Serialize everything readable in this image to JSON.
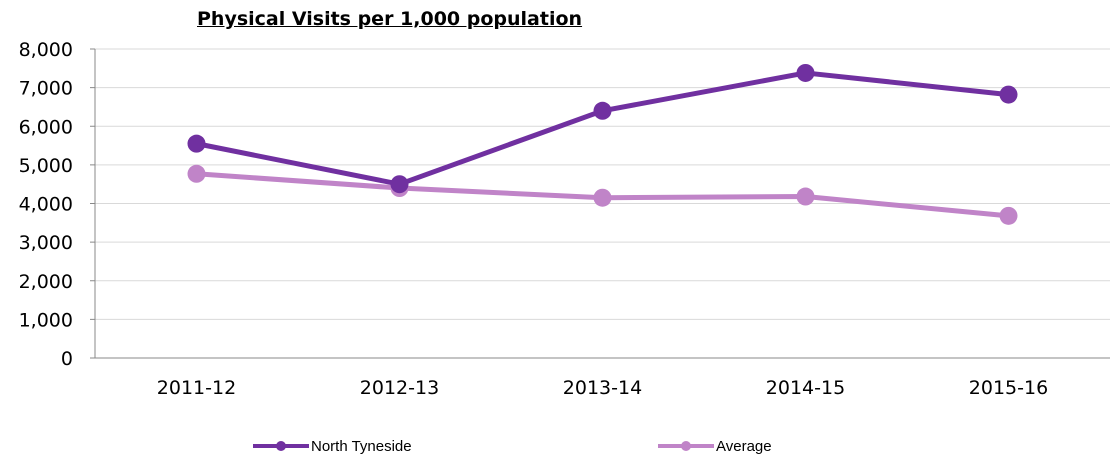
{
  "chart_data": {
    "type": "line",
    "title": "Physical Visits per 1,000 population",
    "xlabel": "",
    "ylabel": "",
    "categories": [
      "2011-12",
      "2012-13",
      "2013-14",
      "2014-15",
      "2015-16"
    ],
    "ylim": [
      0,
      8000
    ],
    "yticks": [
      0,
      1000,
      2000,
      3000,
      4000,
      5000,
      6000,
      7000,
      8000
    ],
    "ytick_labels": [
      "0",
      "1,000",
      "2,000",
      "3,000",
      "4,000",
      "5,000",
      "6,000",
      "7,000",
      "8,000"
    ],
    "grid": true,
    "legend_position": "bottom",
    "series": [
      {
        "name": "North Tyneside",
        "color": "#7030a0",
        "values": [
          5550,
          4500,
          6400,
          7380,
          6820
        ]
      },
      {
        "name": "Average",
        "color": "#c084c8",
        "values": [
          4770,
          4400,
          4150,
          4180,
          3680
        ]
      }
    ]
  }
}
